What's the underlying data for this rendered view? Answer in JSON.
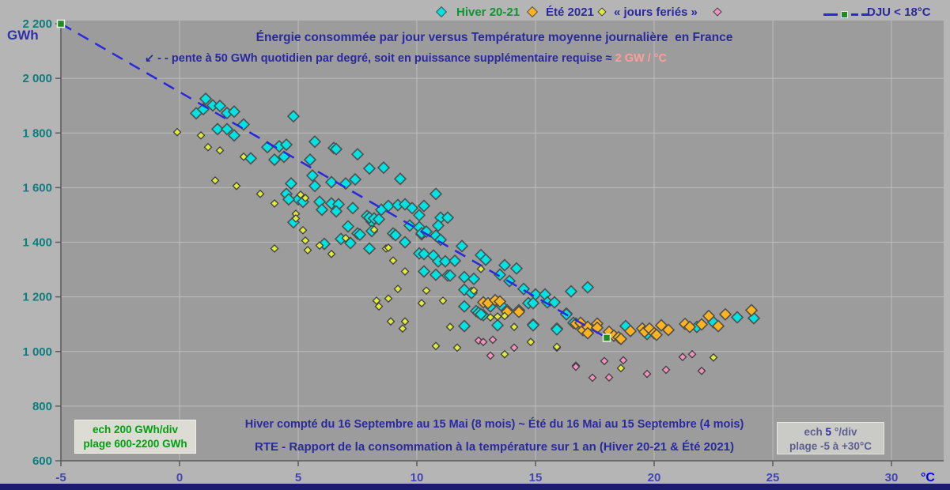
{
  "header": {
    "y_unit": "GWh"
  },
  "legend": {
    "hiver": {
      "label": "Hiver 20-21",
      "marker_color": "#00e3e3",
      "text_color": "#0f9430"
    },
    "ete": {
      "label": "Été 2021",
      "marker_color": "#ffb41e"
    },
    "feries": {
      "label": "« jours feriés »",
      "marker_color": "#e0ec3c"
    },
    "autres": {
      "marker_color": "#f491bd"
    },
    "dju": {
      "label": "DJU < 18°C",
      "line_color": "#2828dc",
      "marker_color": "#1e8c1e"
    }
  },
  "footer": {
    "line1": "Hiver compté du 16 Septembre au 15 Mai (8 mois) ~ Été du 16 Mai au 15 Septembre (4 mois)",
    "line2": "RTE - Rapport de la consommation à la température sur 1 an (Hiver 20-21 & Été 2021)"
  },
  "boxes": {
    "left": {
      "line1": "ech 200 GWh/div",
      "line2": "plage 600-2200 GWh"
    },
    "right": {
      "line1_prefix": "ech ",
      "line1_value": "5",
      "line1_suffix": " °/div",
      "line2": "plage -5 à +30°C"
    }
  },
  "chart_data": {
    "type": "scatter",
    "title": "Énergie consommée par jour versus Température moyenne journalière  en France",
    "annotation": {
      "text": "↙ - - pente à 50 GWh quotidien par degré, soit en puissance supplémentaire requise ≈",
      "highlight": " 2 GW / °C"
    },
    "xlabel": "Température moyenne journalière",
    "ylabel": "Énergie consommée par jour",
    "axes": {
      "x": {
        "values": [
          -5,
          0,
          5,
          10,
          15,
          20,
          25,
          30
        ],
        "labels": [
          "-5",
          "0",
          "5",
          "10",
          "15",
          "20",
          "25",
          "30"
        ],
        "unit": "°C",
        "range": [
          -5,
          30
        ],
        "step_note": "ech 5 °/div"
      },
      "y": {
        "values": [
          600,
          800,
          1000,
          1200,
          1400,
          1600,
          1800,
          2000,
          2200
        ],
        "labels": [
          "600",
          "800",
          "1 000",
          "1 200",
          "1 400",
          "1 600",
          "1 800",
          "2 000",
          "2 200"
        ],
        "unit": "GWh",
        "range": [
          600,
          2200
        ],
        "step_note": "ech 200 GWh/div"
      }
    },
    "trend_line": {
      "name": "DJU < 18°C",
      "from": [
        -5,
        2200
      ],
      "to": [
        18,
        1050
      ],
      "slope_gwh_per_degc": -50,
      "style": "dashed",
      "color": "#2828dc",
      "endpoint_marker_color": "#1e8c1e"
    },
    "series": [
      {
        "id": "hiver",
        "name": "Hiver 20-21",
        "marker": "diamond",
        "marker_radius": 7,
        "color": "#00e3e3",
        "outline": "#4f4f4f",
        "points": [
          [
            0.7,
            1872
          ],
          [
            1.0,
            1887
          ],
          [
            1.1,
            1925
          ],
          [
            1.4,
            1901
          ],
          [
            1.7,
            1899
          ],
          [
            2.0,
            1873
          ],
          [
            2.3,
            1878
          ],
          [
            1.6,
            1814
          ],
          [
            2.0,
            1814
          ],
          [
            2.3,
            1791
          ],
          [
            2.7,
            1831
          ],
          [
            3.0,
            1707
          ],
          [
            3.7,
            1748
          ],
          [
            4.2,
            1751
          ],
          [
            4.5,
            1757
          ],
          [
            4.0,
            1702
          ],
          [
            4.4,
            1713
          ],
          [
            4.8,
            1861
          ],
          [
            5.7,
            1768
          ],
          [
            5.5,
            1702
          ],
          [
            5.6,
            1644
          ],
          [
            5.7,
            1606
          ],
          [
            4.7,
            1615
          ],
          [
            5.0,
            1557
          ],
          [
            5.2,
            1548
          ],
          [
            5.9,
            1548
          ],
          [
            4.5,
            1577
          ],
          [
            4.6,
            1557
          ],
          [
            4.8,
            1473
          ],
          [
            6.5,
            1745
          ],
          [
            6.6,
            1741
          ],
          [
            6.4,
            1620
          ],
          [
            7.0,
            1615
          ],
          [
            7.4,
            1630
          ],
          [
            6.4,
            1542
          ],
          [
            6.7,
            1539
          ],
          [
            6.0,
            1519
          ],
          [
            6.6,
            1513
          ],
          [
            7.3,
            1525
          ],
          [
            7.5,
            1722
          ],
          [
            7.9,
            1496
          ],
          [
            8.1,
            1475
          ],
          [
            7.1,
            1458
          ],
          [
            7.5,
            1432
          ],
          [
            7.6,
            1428
          ],
          [
            6.8,
            1412
          ],
          [
            7.2,
            1397
          ],
          [
            6.1,
            1394
          ],
          [
            8.0,
            1377
          ],
          [
            8.0,
            1670
          ],
          [
            8.6,
            1673
          ],
          [
            8.5,
            1519
          ],
          [
            8.8,
            1533
          ],
          [
            9.2,
            1536
          ],
          [
            9.5,
            1539
          ],
          [
            9.8,
            1525
          ],
          [
            9.0,
            1432
          ],
          [
            9.1,
            1426
          ],
          [
            9.5,
            1400
          ],
          [
            9.7,
            1461
          ],
          [
            8.1,
            1441
          ],
          [
            8.0,
            1490
          ],
          [
            8.2,
            1487
          ],
          [
            8.4,
            1484
          ],
          [
            9.3,
            1632
          ],
          [
            10.1,
            1499
          ],
          [
            10.3,
            1533
          ],
          [
            10.2,
            1429
          ],
          [
            10.8,
            1577
          ],
          [
            11.0,
            1490
          ],
          [
            11.3,
            1490
          ],
          [
            10.9,
            1461
          ],
          [
            10.1,
            1455
          ],
          [
            10.2,
            1433
          ],
          [
            10.4,
            1439
          ],
          [
            10.8,
            1424
          ],
          [
            11.0,
            1409
          ],
          [
            10.1,
            1359
          ],
          [
            10.3,
            1357
          ],
          [
            10.7,
            1351
          ],
          [
            10.9,
            1330
          ],
          [
            11.2,
            1330
          ],
          [
            11.6,
            1332
          ],
          [
            11.9,
            1386
          ],
          [
            10.3,
            1293
          ],
          [
            10.8,
            1281
          ],
          [
            11.3,
            1278
          ],
          [
            11.4,
            1278
          ],
          [
            12.0,
            1272
          ],
          [
            12.4,
            1266
          ],
          [
            12.7,
            1353
          ],
          [
            12.9,
            1336
          ],
          [
            13.7,
            1316
          ],
          [
            14.2,
            1304
          ],
          [
            13.5,
            1281
          ],
          [
            13.9,
            1258
          ],
          [
            12.0,
            1226
          ],
          [
            12.3,
            1214
          ],
          [
            12.5,
            1148
          ],
          [
            12.8,
            1133
          ],
          [
            13.1,
            1165
          ],
          [
            12.0,
            1165
          ],
          [
            13.6,
            1165
          ],
          [
            13.3,
            1186
          ],
          [
            12.0,
            1093
          ],
          [
            12.6,
            1142
          ],
          [
            12.7,
            1136
          ],
          [
            13.4,
            1096
          ],
          [
            14.5,
            1229
          ],
          [
            15.0,
            1209
          ],
          [
            15.4,
            1209
          ],
          [
            14.7,
            1177
          ],
          [
            14.9,
            1177
          ],
          [
            15.5,
            1180
          ],
          [
            14.9,
            1099
          ],
          [
            14.9,
            1096
          ],
          [
            15.9,
            1084
          ],
          [
            16.3,
            1139
          ],
          [
            15.8,
            1180
          ],
          [
            16.3,
            1136
          ],
          [
            15.9,
            1081
          ],
          [
            16.5,
            1220
          ],
          [
            17.2,
            1235
          ],
          [
            16.6,
            1105
          ],
          [
            17.2,
            1069
          ],
          [
            18.8,
            1093
          ],
          [
            19.7,
            1064
          ],
          [
            21.8,
            1090
          ],
          [
            22.5,
            1107
          ],
          [
            23.5,
            1125
          ],
          [
            24.2,
            1122
          ]
        ]
      },
      {
        "id": "ete",
        "name": "Été 2021",
        "marker": "diamond",
        "marker_radius": 7,
        "color": "#ffb41e",
        "outline": "#4f4f4f",
        "points": [
          [
            12.8,
            1180
          ],
          [
            13.0,
            1177
          ],
          [
            13.3,
            1188
          ],
          [
            13.5,
            1183
          ],
          [
            13.8,
            1151
          ],
          [
            14.3,
            1151
          ],
          [
            13.8,
            1145
          ],
          [
            14.3,
            1145
          ],
          [
            16.7,
            1102
          ],
          [
            16.9,
            1105
          ],
          [
            17.0,
            1078
          ],
          [
            17.2,
            1090
          ],
          [
            17.2,
            1067
          ],
          [
            17.6,
            1102
          ],
          [
            17.6,
            1087
          ],
          [
            18.1,
            1072
          ],
          [
            18.3,
            1058
          ],
          [
            18.5,
            1052
          ],
          [
            18.6,
            1046
          ],
          [
            19.0,
            1075
          ],
          [
            19.5,
            1084
          ],
          [
            19.6,
            1072
          ],
          [
            19.8,
            1084
          ],
          [
            20.0,
            1067
          ],
          [
            20.1,
            1061
          ],
          [
            20.3,
            1096
          ],
          [
            20.6,
            1079
          ],
          [
            21.3,
            1101
          ],
          [
            21.5,
            1090
          ],
          [
            22.0,
            1099
          ],
          [
            22.3,
            1130
          ],
          [
            22.7,
            1093
          ],
          [
            23.0,
            1136
          ],
          [
            24.1,
            1151
          ]
        ]
      },
      {
        "id": "feries",
        "name": "« jours feriés »",
        "marker": "diamond",
        "marker_radius": 4.5,
        "color": "#e0ec3c",
        "outline": "#3f3f3f",
        "points": [
          [
            -0.1,
            1803
          ],
          [
            0.9,
            1791
          ],
          [
            1.2,
            1748
          ],
          [
            1.7,
            1736
          ],
          [
            2.7,
            1713
          ],
          [
            1.5,
            1626
          ],
          [
            2.4,
            1606
          ],
          [
            3.4,
            1577
          ],
          [
            5.1,
            1574
          ],
          [
            5.3,
            1562
          ],
          [
            4.0,
            1542
          ],
          [
            4.9,
            1504
          ],
          [
            4.9,
            1487
          ],
          [
            5.2,
            1444
          ],
          [
            5.3,
            1406
          ],
          [
            4.0,
            1377
          ],
          [
            5.4,
            1371
          ],
          [
            5.9,
            1388
          ],
          [
            6.4,
            1357
          ],
          [
            7.0,
            1415
          ],
          [
            8.2,
            1446
          ],
          [
            8.7,
            1377
          ],
          [
            8.8,
            1380
          ],
          [
            9.0,
            1333
          ],
          [
            9.2,
            1229
          ],
          [
            9.5,
            1293
          ],
          [
            8.3,
            1186
          ],
          [
            8.4,
            1165
          ],
          [
            8.8,
            1194
          ],
          [
            8.9,
            1110
          ],
          [
            9.5,
            1110
          ],
          [
            9.4,
            1084
          ],
          [
            10.2,
            1177
          ],
          [
            10.4,
            1223
          ],
          [
            11.1,
            1186
          ],
          [
            11.4,
            1090
          ],
          [
            12.4,
            1223
          ],
          [
            12.7,
            1302
          ],
          [
            13.1,
            1125
          ],
          [
            13.4,
            1128
          ],
          [
            13.7,
            1130
          ],
          [
            14.1,
            1090
          ],
          [
            10.8,
            1020
          ],
          [
            11.7,
            1014
          ],
          [
            14.8,
            1035
          ],
          [
            15.9,
            1014
          ],
          [
            13.7,
            990
          ],
          [
            15.9,
            1017
          ],
          [
            18.6,
            939
          ],
          [
            22.5,
            978
          ]
        ]
      },
      {
        "id": "autres",
        "name": "",
        "marker": "diamond",
        "marker_radius": 4.5,
        "color": "#f491bd",
        "outline": "#3f3f3f",
        "points": [
          [
            12.6,
            1040
          ],
          [
            12.8,
            1035
          ],
          [
            13.2,
            1043
          ],
          [
            14.1,
            1014
          ],
          [
            13.1,
            985
          ],
          [
            16.7,
            948
          ],
          [
            16.7,
            944
          ],
          [
            17.4,
            904
          ],
          [
            17.9,
            965
          ],
          [
            18.1,
            905
          ],
          [
            18.7,
            968
          ],
          [
            19.7,
            918
          ],
          [
            20.5,
            933
          ],
          [
            21.2,
            980
          ],
          [
            21.6,
            990
          ],
          [
            22.0,
            929
          ]
        ]
      }
    ]
  }
}
